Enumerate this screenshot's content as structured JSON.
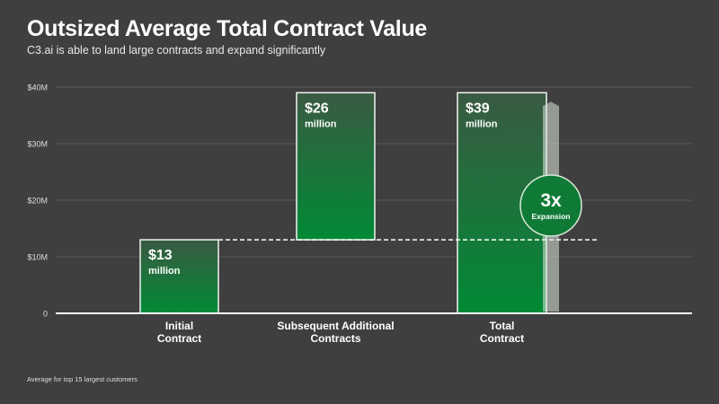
{
  "title": "Outsized Average Total Contract Value",
  "subtitle": "C3.ai is able to land large contracts and expand significantly",
  "footnote": "Average for top 15 largest customers",
  "chart_data": {
    "type": "bar",
    "subtype": "waterfall",
    "title": "Outsized Average Total Contract Value",
    "ylim": [
      0,
      40
    ],
    "yticks": [
      {
        "value": 0,
        "label": "0"
      },
      {
        "value": 10,
        "label": "$10M"
      },
      {
        "value": 20,
        "label": "$20M"
      },
      {
        "value": 30,
        "label": "$30M"
      },
      {
        "value": 40,
        "label": "$40M"
      }
    ],
    "grid": true,
    "categories": [
      "Initial Contract",
      "Subsequent Additional Contracts",
      "Total Contract"
    ],
    "category_lines": [
      [
        "Initial",
        "Contract"
      ],
      [
        "Subsequent Additional",
        "Contracts"
      ],
      [
        "Total",
        "Contract"
      ]
    ],
    "bars": [
      {
        "category": "Initial Contract",
        "base": 0,
        "value": 13,
        "value_label": "$13",
        "unit_label": "million"
      },
      {
        "category": "Subsequent Additional Contracts",
        "base": 13,
        "value": 26,
        "value_label": "$26",
        "unit_label": "million"
      },
      {
        "category": "Total Contract",
        "base": 0,
        "value": 39,
        "value_label": "$39",
        "unit_label": "million"
      }
    ],
    "annotation": {
      "multiplier": "3x",
      "label": "Expansion"
    },
    "colors": {
      "bar_top": "#3a5a42",
      "bar_bottom": "#008a35",
      "circle": "#0f7a36",
      "background": "#3f3f3f"
    }
  }
}
